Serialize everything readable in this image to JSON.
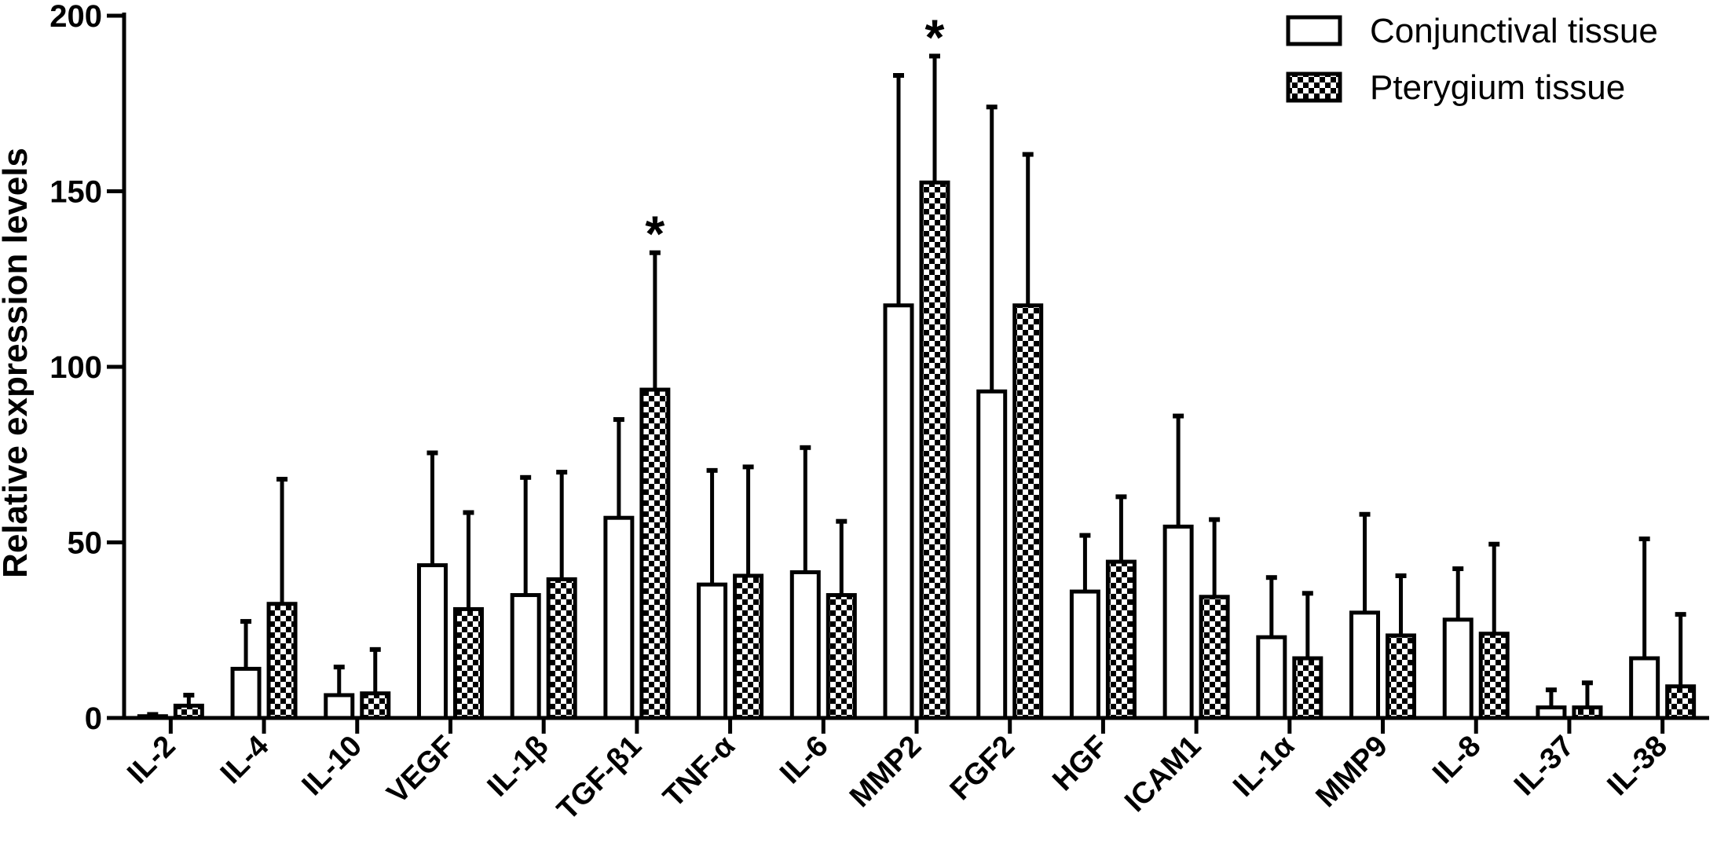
{
  "chart_data": {
    "type": "bar",
    "title": "",
    "xlabel": "",
    "ylabel": "Relative expression levels",
    "ylim": [
      0,
      200
    ],
    "yticks": [
      0,
      50,
      100,
      150,
      200
    ],
    "categories": [
      "IL-2",
      "IL-4",
      "IL-10",
      "VEGF",
      "IL-1β",
      "TGF-β1",
      "TNF-α",
      "IL-6",
      "MMP2",
      "FGF2",
      "HGF",
      "ICAM1",
      "IL-1α",
      "MMP9",
      "IL-8",
      "IL-37",
      "IL-38"
    ],
    "series": [
      {
        "name": "Conjunctival tissue",
        "fill": "white",
        "values": [
          0.5,
          14,
          6.5,
          43.5,
          35,
          57,
          38,
          41.5,
          117.5,
          93,
          36,
          54.5,
          23,
          30,
          28,
          3,
          17
        ],
        "error_upper": [
          1,
          27.5,
          14.5,
          75.5,
          68.5,
          85,
          70.5,
          77,
          183,
          174,
          52,
          86,
          40,
          58,
          42.5,
          8,
          51
        ]
      },
      {
        "name": "Pterygium tissue",
        "fill": "checkered",
        "values": [
          3.5,
          32.5,
          7,
          31,
          39.5,
          93.5,
          40.5,
          35,
          152.5,
          117.5,
          44.5,
          34.5,
          17,
          23.5,
          24,
          3,
          9
        ],
        "error_upper": [
          6.5,
          68,
          19.5,
          58.5,
          70,
          132.5,
          71.5,
          56,
          188.5,
          160.5,
          63,
          56.5,
          35.5,
          40.5,
          49.5,
          10,
          29.5
        ]
      }
    ],
    "annotations": [
      {
        "text": "*",
        "category": "TGF-β1",
        "series": "Pterygium tissue"
      },
      {
        "text": "*",
        "category": "MMP2",
        "series": "Pterygium tissue"
      }
    ],
    "legend_position": "top-right",
    "grid": false,
    "colors": {
      "stroke": "#000000",
      "background": "#ffffff"
    }
  }
}
